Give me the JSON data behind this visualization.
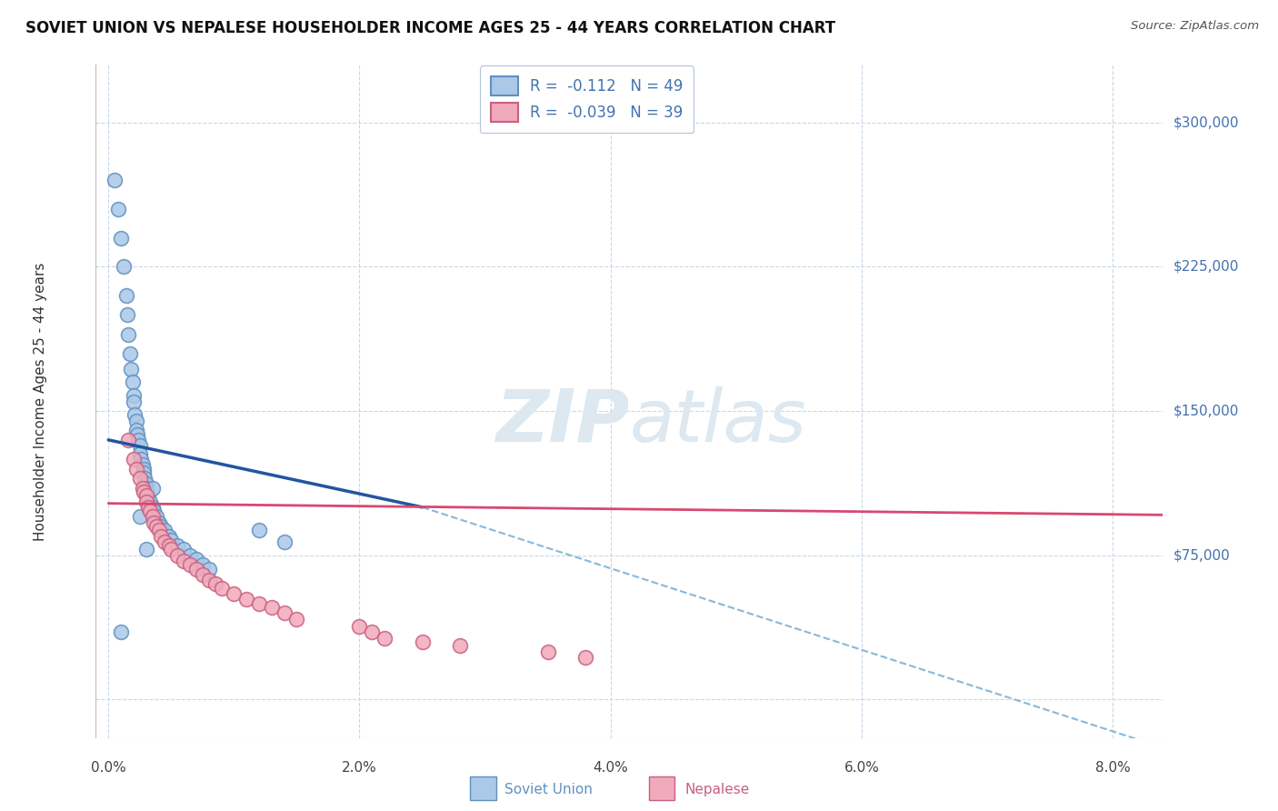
{
  "title": "SOVIET UNION VS NEPALESE HOUSEHOLDER INCOME AGES 25 - 44 YEARS CORRELATION CHART",
  "source": "Source: ZipAtlas.com",
  "ylabel": "Householder Income Ages 25 - 44 years",
  "xlim": [
    -0.1,
    8.4
  ],
  "ylim": [
    -20000,
    330000
  ],
  "x_tick_vals": [
    0.0,
    2.0,
    4.0,
    6.0,
    8.0
  ],
  "x_tick_labels": [
    "0.0%",
    "2.0%",
    "4.0%",
    "6.0%",
    "8.0%"
  ],
  "y_tick_vals": [
    0,
    75000,
    150000,
    225000,
    300000
  ],
  "y_tick_labels": [
    "",
    "$75,000",
    "$150,000",
    "$225,000",
    "$300,000"
  ],
  "soviet_color": "#aac8e8",
  "soviet_edge": "#6090c0",
  "nepalese_color": "#f0aabb",
  "nepalese_edge": "#c86080",
  "soviet_R": -0.112,
  "soviet_N": 49,
  "nepalese_R": -0.039,
  "nepalese_N": 39,
  "grid_color": "#c8d8e8",
  "bg_color": "#ffffff",
  "title_color": "#111111",
  "source_color": "#555555",
  "ylabel_color": "#333333",
  "right_tick_color": "#4472b0",
  "trend_blue": "#2255a0",
  "trend_blue_dash": "#88b8d8",
  "trend_pink": "#d84870",
  "watermark_color": "#dde8f0",
  "legend_label_color": "#4472b0",
  "soviet_x": [
    0.05,
    0.08,
    0.1,
    0.12,
    0.14,
    0.15,
    0.16,
    0.17,
    0.18,
    0.19,
    0.2,
    0.2,
    0.21,
    0.22,
    0.22,
    0.23,
    0.24,
    0.25,
    0.25,
    0.26,
    0.27,
    0.28,
    0.28,
    0.29,
    0.3,
    0.3,
    0.31,
    0.32,
    0.33,
    0.35,
    0.36,
    0.38,
    0.4,
    0.42,
    0.45,
    0.48,
    0.5,
    0.55,
    0.6,
    0.65,
    0.7,
    0.75,
    0.8,
    0.25,
    0.3,
    0.35,
    1.2,
    1.4,
    0.1
  ],
  "soviet_y": [
    270000,
    255000,
    240000,
    225000,
    210000,
    200000,
    190000,
    180000,
    172000,
    165000,
    158000,
    155000,
    148000,
    145000,
    140000,
    138000,
    135000,
    132000,
    128000,
    125000,
    122000,
    120000,
    118000,
    115000,
    112000,
    110000,
    108000,
    106000,
    103000,
    100000,
    98000,
    95000,
    92000,
    90000,
    88000,
    85000,
    83000,
    80000,
    78000,
    75000,
    73000,
    70000,
    68000,
    95000,
    78000,
    110000,
    88000,
    82000,
    35000
  ],
  "nepalese_x": [
    0.16,
    0.2,
    0.22,
    0.25,
    0.27,
    0.28,
    0.3,
    0.3,
    0.32,
    0.33,
    0.35,
    0.36,
    0.38,
    0.4,
    0.42,
    0.45,
    0.48,
    0.5,
    0.55,
    0.6,
    0.65,
    0.7,
    0.75,
    0.8,
    0.85,
    0.9,
    1.0,
    1.1,
    1.2,
    1.3,
    1.4,
    1.5,
    2.0,
    2.1,
    2.2,
    2.5,
    2.8,
    3.5,
    3.8
  ],
  "nepalese_y": [
    135000,
    125000,
    120000,
    115000,
    110000,
    108000,
    106000,
    103000,
    100000,
    98000,
    95000,
    92000,
    90000,
    88000,
    85000,
    82000,
    80000,
    78000,
    75000,
    72000,
    70000,
    68000,
    65000,
    62000,
    60000,
    58000,
    55000,
    52000,
    50000,
    48000,
    45000,
    42000,
    38000,
    35000,
    32000,
    30000,
    28000,
    25000,
    22000
  ],
  "trend_soviet_x0": 0.0,
  "trend_soviet_x1": 2.5,
  "trend_soviet_y0": 135000,
  "trend_soviet_y1": 100000,
  "trend_soviet_dash_x0": 2.5,
  "trend_soviet_dash_x1": 8.4,
  "trend_soviet_dash_y0": 100000,
  "trend_soviet_dash_y1": -25000,
  "trend_pink_x0": 0.0,
  "trend_pink_x1": 8.4,
  "trend_pink_y0": 102000,
  "trend_pink_y1": 96000
}
